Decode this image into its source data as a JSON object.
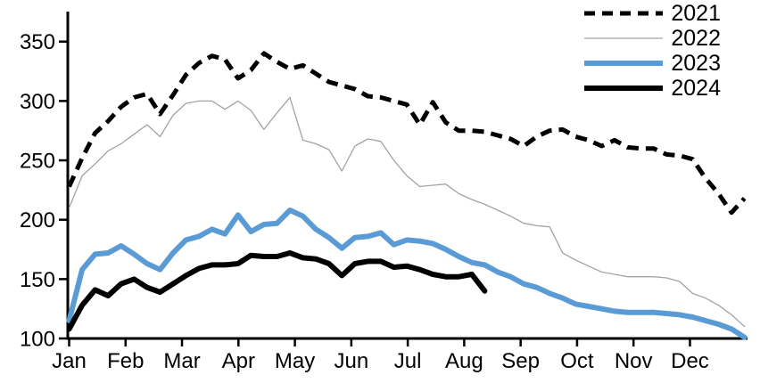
{
  "chart_data": {
    "type": "line",
    "title": "",
    "grid": false,
    "background_color": "#ffffff",
    "axis_color": "#000000",
    "legend_position": "top-right",
    "x_axis": {
      "unit": "week-of-year",
      "tick_labels": [
        "Jan",
        "Feb",
        "Mar",
        "Apr",
        "May",
        "Jun",
        "Jul",
        "Aug",
        "Sep",
        "Oct",
        "Nov",
        "Dec"
      ]
    },
    "y_axis": {
      "ticks": [
        100,
        150,
        200,
        250,
        300,
        350
      ],
      "range": [
        100,
        375
      ]
    },
    "series": [
      {
        "name": "2021",
        "color": "#000000",
        "style": "dashed",
        "dash": "13 8",
        "width": 5,
        "values": [
          228,
          252,
          273,
          283,
          295,
          303,
          306,
          289,
          305,
          322,
          332,
          338,
          335,
          319,
          326,
          340,
          333,
          327,
          330,
          323,
          316,
          313,
          310,
          304,
          303,
          300,
          297,
          280,
          299,
          282,
          275,
          275,
          274,
          271,
          268,
          262,
          270,
          275,
          276,
          270,
          267,
          262,
          267,
          261,
          260,
          260,
          255,
          254,
          251,
          235,
          222,
          206,
          218
        ]
      },
      {
        "name": "2022",
        "color": "#a3a3a3",
        "style": "solid",
        "dash": "",
        "width": 1.3,
        "values": [
          210,
          237,
          247,
          258,
          264,
          272,
          280,
          270,
          288,
          298,
          300,
          300,
          293,
          300,
          292,
          276,
          290,
          303,
          267,
          264,
          259,
          241,
          262,
          268,
          266,
          250,
          237,
          228,
          229,
          230,
          222,
          217,
          213,
          208,
          203,
          197,
          195,
          194,
          172,
          166,
          161,
          156,
          154,
          152,
          152,
          152,
          151,
          148,
          138,
          134,
          128,
          120,
          110
        ]
      },
      {
        "name": "2023",
        "color": "#5b9bd5",
        "style": "solid",
        "dash": "",
        "width": 6,
        "values": [
          115,
          158,
          171,
          172,
          178,
          171,
          163,
          158,
          172,
          183,
          186,
          192,
          188,
          204,
          190,
          196,
          197,
          208,
          203,
          192,
          185,
          176,
          185,
          186,
          189,
          179,
          183,
          182,
          180,
          175,
          169,
          164,
          162,
          156,
          152,
          146,
          143,
          138,
          134,
          129,
          127,
          125,
          123,
          122,
          122,
          122,
          121,
          120,
          118,
          115,
          112,
          108,
          101
        ]
      },
      {
        "name": "2024",
        "color": "#000000",
        "style": "solid",
        "dash": "",
        "width": 6,
        "values": [
          108,
          128,
          141,
          136,
          146,
          150,
          143,
          139,
          146,
          153,
          159,
          162,
          162,
          163,
          170,
          169,
          169,
          172,
          168,
          167,
          163,
          153,
          163,
          165,
          165,
          160,
          161,
          158,
          154,
          152,
          152,
          154,
          140
        ]
      }
    ]
  }
}
